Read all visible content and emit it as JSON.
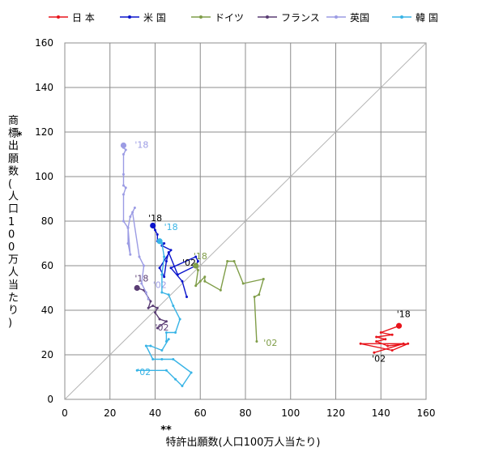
{
  "chart_data": {
    "type": "line",
    "xlabel": "特許出願数(人口100万人当たり)",
    "xlabel_mark": "**",
    "ylabel": "商標出願数(人口100万人当たり)",
    "ylabel_mark": "*",
    "xlim": [
      0,
      160
    ],
    "ylim": [
      0,
      160
    ],
    "xticks": [
      0,
      20,
      40,
      60,
      80,
      100,
      120,
      140,
      160
    ],
    "yticks": [
      0,
      20,
      40,
      60,
      80,
      100,
      120,
      140,
      160
    ],
    "grid": true,
    "legend_position": "top",
    "diagonal_reference": true,
    "series": [
      {
        "name": "日 本",
        "color": "#e8141b",
        "points": [
          [
            137,
            21
          ],
          [
            150,
            25
          ],
          [
            131,
            25
          ],
          [
            145,
            22
          ],
          [
            152,
            25
          ],
          [
            143,
            24
          ],
          [
            138,
            26
          ],
          [
            142,
            27
          ],
          [
            138,
            28
          ],
          [
            145,
            29
          ],
          [
            140,
            30
          ],
          [
            148,
            33
          ]
        ],
        "start_label": "'02",
        "end_label": "'18",
        "start_label_pos": [
          136,
          17
        ],
        "end_label_pos": [
          147,
          37
        ]
      },
      {
        "name": "米 国",
        "color": "#0a14cc",
        "points": [
          [
            54,
            46
          ],
          [
            52,
            53
          ],
          [
            47,
            59
          ],
          [
            58,
            64
          ],
          [
            59,
            62
          ],
          [
            58,
            60
          ],
          [
            50,
            56
          ],
          [
            46,
            66
          ],
          [
            45,
            62
          ],
          [
            44,
            55
          ],
          [
            42,
            59
          ],
          [
            47,
            67
          ],
          [
            43,
            69
          ],
          [
            44,
            70
          ],
          [
            41,
            71
          ],
          [
            41,
            74
          ],
          [
            40,
            76
          ],
          [
            39,
            78
          ]
        ],
        "start_label": "'02",
        "end_label": "'18",
        "start_label_pos": [
          52,
          60
        ],
        "end_label_pos": [
          37,
          80
        ]
      },
      {
        "name": "ドイツ",
        "color": "#7f9d48",
        "points": [
          [
            85,
            26
          ],
          [
            84,
            46
          ],
          [
            86,
            47
          ],
          [
            88,
            54
          ],
          [
            79,
            52
          ],
          [
            75,
            62
          ],
          [
            72,
            62
          ],
          [
            69,
            49
          ],
          [
            62,
            53
          ],
          [
            62,
            55
          ],
          [
            60,
            53
          ],
          [
            58,
            51
          ],
          [
            59,
            58
          ],
          [
            58,
            60
          ]
        ],
        "start_label": "'02",
        "end_label": "'18",
        "start_label_pos": [
          88,
          24
        ],
        "end_label_pos": [
          57,
          63
        ]
      },
      {
        "name": "フランス",
        "color": "#5a3d74",
        "points": [
          [
            41,
            32
          ],
          [
            45,
            35
          ],
          [
            42,
            36
          ],
          [
            40,
            39
          ],
          [
            41,
            41
          ],
          [
            39,
            42
          ],
          [
            37,
            41
          ],
          [
            38,
            44
          ],
          [
            35,
            49
          ],
          [
            32,
            50
          ]
        ],
        "start_label": "'02",
        "end_label": "'18",
        "start_label_pos": [
          40,
          31
        ],
        "end_label_pos": [
          31,
          53
        ]
      },
      {
        "name": "英国",
        "color": "#9c9ce4",
        "points": [
          [
            37,
            45
          ],
          [
            36,
            48
          ],
          [
            34,
            52
          ],
          [
            35,
            60
          ],
          [
            33,
            64
          ],
          [
            30,
            84
          ],
          [
            31,
            86
          ],
          [
            29,
            82
          ],
          [
            28,
            77
          ],
          [
            29,
            65
          ],
          [
            28,
            70
          ],
          [
            28,
            77
          ],
          [
            26,
            80
          ],
          [
            26,
            92
          ],
          [
            27,
            95
          ],
          [
            26,
            96
          ],
          [
            26,
            101
          ],
          [
            26,
            110
          ],
          [
            27,
            112
          ],
          [
            26,
            113
          ],
          [
            26,
            114
          ]
        ],
        "start_label": "'02",
        "end_label": "'18",
        "start_label_pos": [
          39,
          50
        ],
        "end_label_pos": [
          31,
          113
        ]
      },
      {
        "name": "韓 国",
        "color": "#38b4e6",
        "points": [
          [
            32,
            13
          ],
          [
            45,
            13
          ],
          [
            49,
            9
          ],
          [
            52,
            6
          ],
          [
            56,
            12
          ],
          [
            48,
            18
          ],
          [
            43,
            18
          ],
          [
            39,
            18
          ],
          [
            36,
            24
          ],
          [
            38,
            24
          ],
          [
            43,
            22
          ],
          [
            46,
            27
          ],
          [
            45,
            26
          ],
          [
            45,
            30
          ],
          [
            49,
            30
          ],
          [
            51,
            36
          ],
          [
            48,
            42
          ],
          [
            46,
            47
          ],
          [
            43,
            48
          ],
          [
            43,
            56
          ],
          [
            44,
            64
          ],
          [
            43,
            70
          ],
          [
            42,
            71
          ]
        ],
        "start_label": "'02",
        "end_label": "'18",
        "start_label_pos": [
          32,
          11
        ],
        "end_label_pos": [
          44,
          76
        ]
      }
    ]
  }
}
